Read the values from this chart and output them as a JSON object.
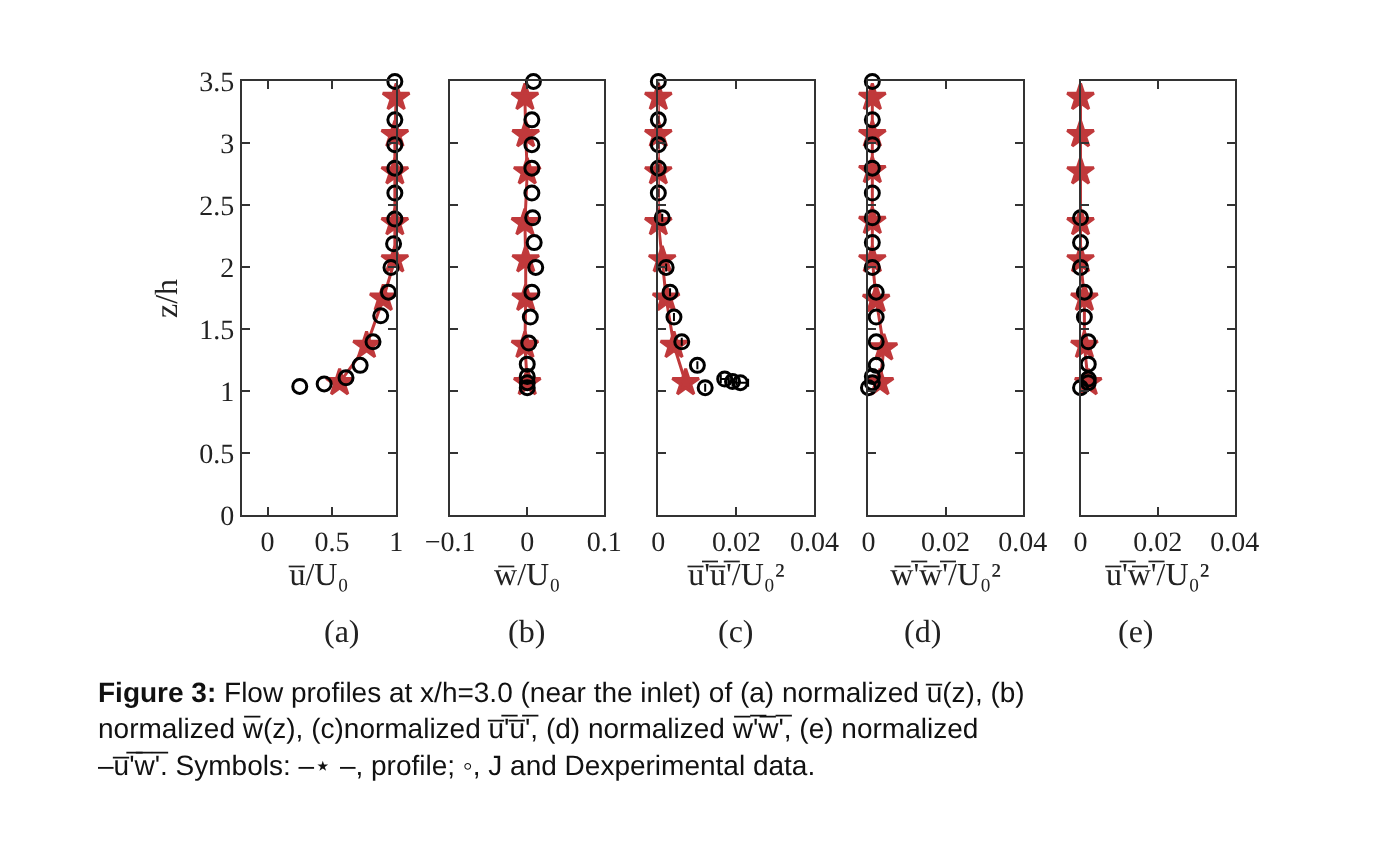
{
  "chart_data": [
    {
      "type": "line",
      "xlabel": "u̅/U₀",
      "ylabel": "z/h",
      "xlim": [
        -0.2,
        1
      ],
      "xticks": [
        0,
        0.5,
        1
      ],
      "ylim": [
        0,
        3.5
      ],
      "yticks": [
        0,
        0.5,
        1,
        1.5,
        2,
        2.5,
        3,
        3.5
      ],
      "annotations": [
        "(a)",
        "Figure 3: Flow profiles at x/h=3.0 (near the inlet) of (a) normalized u̅(z), (b) normalized w̅(z), (c)normalized u̅'̅u̅'̅, (d) normalized w̅'̅w̅'̅, (e) normalized –u̅'̅w̅'̅. Symbols: –⋆ –, profile; ◦, J and Dexperimental data."
      ],
      "series": [
        {
          "color": "#c0393b",
          "marker": "star",
          "x": [
            0.56,
            0.77,
            0.9,
            0.99,
            0.99,
            0.99,
            0.99,
            1.0
          ],
          "values": [
            1.07,
            1.37,
            1.75,
            2.06,
            2.36,
            2.77,
            3.07,
            3.37
          ]
        },
        {
          "type": "scatter",
          "color": "#000000",
          "marker": "circle",
          "x": [
            0.25,
            0.44,
            0.61,
            0.72,
            0.82,
            0.88,
            0.94,
            0.96,
            0.98,
            0.99,
            0.99,
            0.99,
            0.99,
            0.99,
            0.99
          ],
          "values": [
            1.04,
            1.06,
            1.11,
            1.21,
            1.4,
            1.61,
            1.8,
            2.0,
            2.19,
            2.39,
            2.6,
            2.8,
            2.99,
            3.19,
            3.5
          ]
        }
      ]
    },
    {
      "type": "line",
      "xlabel": "w̅/U₀",
      "xlim": [
        -0.1,
        0.1
      ],
      "xticks": [
        {
          "value": -0.1,
          "label": "−0.1"
        },
        0,
        0.1
      ],
      "ylim": [
        0,
        3.5
      ],
      "yticks": [
        0,
        0.5,
        1,
        1.5,
        2,
        2.5,
        3,
        3.5
      ],
      "tick_labels": "x",
      "annotations": [
        "(b)"
      ],
      "series": [
        {
          "color": "#c0393b",
          "marker": "star",
          "x": [
            0,
            -0.003,
            -0.002,
            -0.002,
            -0.003,
            0,
            -0.002,
            -0.003
          ],
          "values": [
            1.07,
            1.37,
            1.75,
            2.06,
            2.36,
            2.77,
            3.07,
            3.37
          ]
        },
        {
          "type": "scatter",
          "color": "#000000",
          "marker": "circle",
          "x": [
            0,
            0,
            0,
            0,
            0.002,
            0.004,
            0.006,
            0.011,
            0.009,
            0.007,
            0.006,
            0.006,
            0.006,
            0.006,
            0.008
          ],
          "values": [
            1.03,
            1.07,
            1.12,
            1.22,
            1.39,
            1.6,
            1.8,
            2.0,
            2.2,
            2.4,
            2.6,
            2.8,
            2.99,
            3.19,
            3.5
          ]
        }
      ]
    },
    {
      "type": "line",
      "xlabel": "u̅'̅u̅'̅/U₀²",
      "xlim": [
        0,
        0.04
      ],
      "xticks": [
        0,
        0.02,
        0.04
      ],
      "ylim": [
        0,
        3.5
      ],
      "yticks": [
        0,
        0.5,
        1,
        1.5,
        2,
        2.5,
        3,
        3.5
      ],
      "tick_labels": "x",
      "annotations": [
        "(c)"
      ],
      "series": [
        {
          "color": "#c0393b",
          "marker": "star",
          "x": [
            0.007,
            0.004,
            0.002,
            0.001,
            0.0,
            0.0,
            0.0,
            0.0
          ],
          "values": [
            1.07,
            1.37,
            1.75,
            2.06,
            2.36,
            2.77,
            3.07,
            3.37
          ]
        },
        {
          "type": "scatter",
          "color": "#000000",
          "marker": "circle",
          "x": [
            0.012,
            0.021,
            0.019,
            0.017,
            0.01,
            0.006,
            0.004,
            0.003,
            0.002,
            0.001,
            0.0,
            0.0,
            0.0,
            0.0,
            0.0
          ],
          "xerrors": [
            null,
            0.002,
            0.001,
            0.001,
            null,
            null,
            null,
            null,
            null,
            null,
            null,
            null,
            null,
            null,
            null
          ],
          "values": [
            1.03,
            1.07,
            1.08,
            1.1,
            1.21,
            1.4,
            1.6,
            1.8,
            2.0,
            2.4,
            2.6,
            2.8,
            2.99,
            3.19,
            3.5
          ]
        }
      ]
    },
    {
      "type": "line",
      "xlabel": "w̅'̅w̅'̅/U₀²",
      "xlim": [
        0,
        0.04
      ],
      "xticks": [
        0,
        0.02,
        0.04
      ],
      "ylim": [
        0,
        3.5
      ],
      "yticks": [
        0,
        0.5,
        1,
        1.5,
        2,
        2.5,
        3,
        3.5
      ],
      "tick_labels": "x",
      "annotations": [
        "(d)"
      ],
      "series": [
        {
          "color": "#c0393b",
          "marker": "star",
          "x": [
            0.003,
            0.004,
            0.002,
            0.001,
            0.001,
            0.001,
            0.001,
            0.001
          ],
          "values": [
            1.07,
            1.35,
            1.74,
            2.06,
            2.37,
            2.78,
            3.07,
            3.37
          ]
        },
        {
          "type": "scatter",
          "color": "#000000",
          "marker": "circle",
          "x": [
            0.0,
            0.001,
            0.001,
            0.002,
            0.002,
            0.002,
            0.002,
            0.001,
            0.001,
            0.001,
            0.001,
            0.001,
            0.001,
            0.001,
            0.001
          ],
          "values": [
            1.03,
            1.07,
            1.12,
            1.21,
            1.4,
            1.6,
            1.8,
            2.0,
            2.2,
            2.4,
            2.6,
            2.8,
            2.99,
            3.19,
            3.5
          ]
        }
      ]
    },
    {
      "type": "line",
      "xlabel": "u̅'̅w̅'̅/U₀²",
      "xlim": [
        0,
        0.04
      ],
      "xticks": [
        0,
        0.02,
        0.04
      ],
      "ylim": [
        0,
        3.5
      ],
      "yticks": [
        0,
        0.5,
        1,
        1.5,
        2,
        2.5,
        3,
        3.5
      ],
      "tick_labels": "x",
      "annotations": [
        "(e)"
      ],
      "series": [
        {
          "color": "#c0393b",
          "marker": "star",
          "x": [
            0.002,
            0.001,
            0.001,
            0.0,
            0.0,
            0.0,
            0.0,
            0.0
          ],
          "values": [
            1.07,
            1.37,
            1.75,
            2.06,
            2.36,
            2.77,
            3.07,
            3.37
          ]
        },
        {
          "type": "scatter",
          "color": "#000000",
          "marker": "circle",
          "x": [
            0.0,
            0.002,
            0.002,
            0.002,
            0.002,
            0.001,
            0.001,
            0.0,
            0.0,
            0.0
          ],
          "values": [
            1.03,
            1.07,
            1.1,
            1.22,
            1.4,
            1.6,
            1.8,
            2.0,
            2.2,
            2.4
          ]
        }
      ]
    }
  ]
}
